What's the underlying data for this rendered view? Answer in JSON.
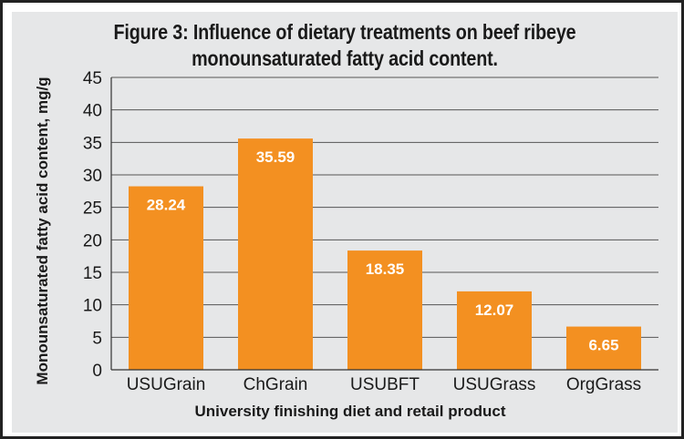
{
  "chart_data": {
    "type": "bar",
    "title": "Figure 3: Influence of dietary treatments on beef ribeye monounsaturated fatty acid content.",
    "title_lines": [
      "Figure 3: Influence of dietary treatments on beef ribeye",
      "monounsaturated fatty acid content."
    ],
    "xlabel": "University finishing diet and retail product",
    "ylabel": "Monounsaturated fatty acid content, mg/g",
    "categories": [
      "USUGrain",
      "ChGrain",
      "USUBFT",
      "USUGrass",
      "OrgGrass"
    ],
    "values": [
      28.24,
      35.59,
      18.35,
      12.07,
      6.65
    ],
    "data_labels": [
      "28.24",
      "35.59",
      "18.35",
      "12.07",
      "6.65"
    ],
    "ylim": [
      0,
      45
    ],
    "yticks": [
      0,
      5,
      10,
      15,
      20,
      25,
      30,
      35,
      40,
      45
    ],
    "grid": true,
    "legend": "none",
    "colors": {
      "bar": "#f39021",
      "grid": "#555555",
      "background": "#e6e7e8",
      "label": "#ffffff"
    }
  }
}
